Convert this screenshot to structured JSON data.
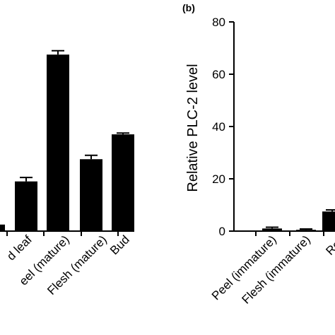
{
  "figure": {
    "panel_b_label": "(b)"
  },
  "chart_data": [
    {
      "type": "bar",
      "panel": "a",
      "categories": [
        "d leaf",
        "eel (mature)",
        "Flesh (mature)",
        "Bud"
      ],
      "leading_bar_value": 2.5,
      "values": [
        19,
        67.5,
        27.5,
        37
      ],
      "errors": [
        1.5,
        1.5,
        1.5,
        0.5
      ],
      "ylim": [
        0,
        80
      ],
      "color": "#000000",
      "grid": false
    },
    {
      "type": "bar",
      "panel": "b",
      "categories": [
        "Peel (immature)",
        "Flesh (immature)",
        "Roo"
      ],
      "values": [
        1,
        0.5,
        7.5
      ],
      "errors": [
        0.5,
        0.3,
        0.6
      ],
      "ylabel": "Relative PLC-2 level",
      "ylim": [
        0,
        80
      ],
      "yticks": [
        0,
        20,
        40,
        60,
        80
      ],
      "color": "#000000",
      "grid": false
    }
  ]
}
